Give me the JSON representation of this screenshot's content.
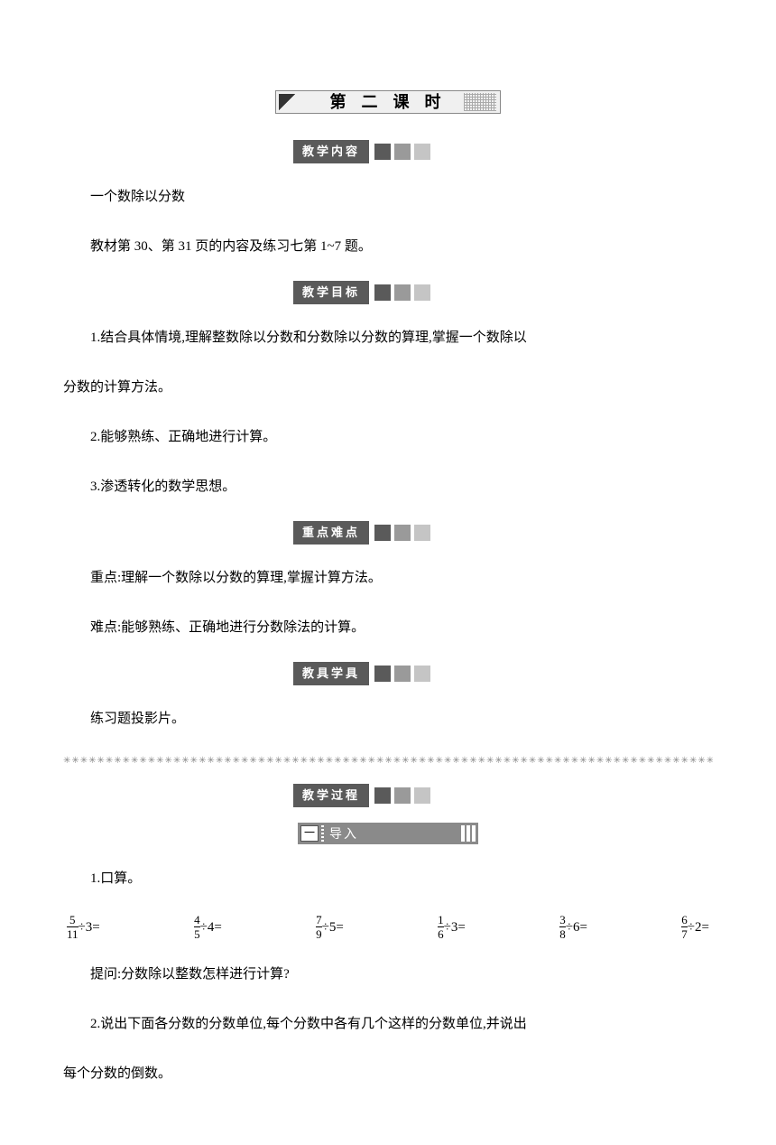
{
  "lesson_title": "第 二 课 时",
  "sections": {
    "content": "教学内容",
    "objectives": "教学目标",
    "keypoints": "重点难点",
    "tools": "教具学具",
    "process": "教学过程"
  },
  "sub_banner": {
    "num": "一",
    "label": "导入"
  },
  "body": {
    "topic": "一个数除以分数",
    "material": "教材第 30、第 31 页的内容及练习七第 1~7 题。",
    "obj1": "1.结合具体情境,理解整数除以分数和分数除以分数的算理,掌握一个数除以",
    "obj1b": "分数的计算方法。",
    "obj2": "2.能够熟练、正确地进行计算。",
    "obj3": "3.渗透转化的数学思想。",
    "keypoint": "重点:理解一个数除以分数的算理,掌握计算方法。",
    "difficulty": "难点:能够熟练、正确地进行分数除法的计算。",
    "tools": "练习题投影片。",
    "ex1_label": "1.口算。",
    "ex1_q": "提问:分数除以整数怎样进行计算?",
    "ex2a": "2.说出下面各分数的分数单位,每个分数中各有几个这样的分数单位,并说出",
    "ex2b": "每个分数的倒数。"
  },
  "fractions": [
    {
      "n": "5",
      "d": "11",
      "div": "3"
    },
    {
      "n": "4",
      "d": "5",
      "div": "4"
    },
    {
      "n": "7",
      "d": "9",
      "div": "5"
    },
    {
      "n": "1",
      "d": "6",
      "div": "3"
    },
    {
      "n": "3",
      "d": "8",
      "div": "6"
    },
    {
      "n": "6",
      "d": "7",
      "div": "2"
    }
  ],
  "separator": "✳✳✳✳✳✳✳✳✳✳✳✳✳✳✳✳✳✳✳✳✳✳✳✳✳✳✳✳✳✳✳✳✳✳✳✳✳✳✳✳✳✳✳✳✳✳✳✳✳✳✳✳✳✳✳✳✳✳✳✳✳✳✳✳✳✳✳✳✳✳✳✳✳✳✳✳✳✳✳✳✳✳✳✳✳✳✳✳✳✳✳✳✳✳✳✳✳✳"
}
